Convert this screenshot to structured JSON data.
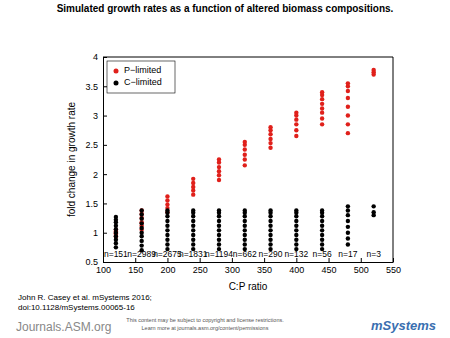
{
  "chart_data": {
    "type": "scatter",
    "title": "Simulated growth rates as a function of altered biomass compositions.",
    "x_label": "C:P ratio",
    "y_label": "fold change in growth rate",
    "xlim": [
      100,
      550
    ],
    "xticks": [
      100,
      150,
      200,
      250,
      300,
      350,
      400,
      450,
      500,
      550
    ],
    "ylim": [
      0.5,
      4
    ],
    "yticks": [
      0.5,
      1,
      1.5,
      2,
      2.5,
      3,
      3.5,
      4
    ],
    "legend": "upper-left",
    "marker": "circle",
    "series": [
      {
        "name": "P−limited",
        "color": "#e0201b",
        "x": [
          120,
          120,
          120,
          120,
          120,
          160,
          160,
          160,
          160,
          160,
          160,
          200,
          200,
          200,
          200,
          200,
          240,
          240,
          240,
          240,
          240,
          280,
          280,
          280,
          280,
          280,
          280,
          320,
          320,
          320,
          320,
          320,
          320,
          360,
          360,
          360,
          360,
          360,
          360,
          400,
          400,
          400,
          400,
          400,
          400,
          440,
          440,
          440,
          440,
          440,
          440,
          440,
          440,
          480,
          480,
          480,
          480,
          480,
          480,
          480,
          480,
          520,
          520,
          520
        ],
        "values": [
          0.93,
          0.96,
          0.99,
          1.02,
          1.05,
          1.05,
          1.12,
          1.18,
          1.25,
          1.32,
          1.38,
          1.35,
          1.42,
          1.48,
          1.55,
          1.62,
          1.65,
          1.72,
          1.78,
          1.85,
          1.92,
          1.9,
          1.98,
          2.05,
          2.12,
          2.2,
          2.25,
          2.15,
          2.25,
          2.33,
          2.42,
          2.5,
          2.55,
          2.45,
          2.53,
          2.6,
          2.68,
          2.75,
          2.8,
          2.65,
          2.75,
          2.85,
          2.93,
          3.0,
          3.05,
          2.85,
          2.95,
          3.05,
          3.12,
          3.2,
          3.28,
          3.35,
          3.4,
          2.7,
          2.85,
          3.0,
          3.15,
          3.3,
          3.42,
          3.5,
          3.55,
          3.7,
          3.74,
          3.78
        ]
      },
      {
        "name": "C−limited",
        "color": "#000000",
        "x": [
          120,
          120,
          120,
          120,
          120,
          120,
          120,
          120,
          120,
          120,
          160,
          160,
          160,
          160,
          160,
          160,
          160,
          160,
          160,
          160,
          200,
          200,
          200,
          200,
          200,
          200,
          200,
          200,
          200,
          200,
          240,
          240,
          240,
          240,
          240,
          240,
          240,
          240,
          240,
          240,
          280,
          280,
          280,
          280,
          280,
          280,
          280,
          280,
          280,
          280,
          320,
          320,
          320,
          320,
          320,
          320,
          320,
          320,
          320,
          320,
          360,
          360,
          360,
          360,
          360,
          360,
          360,
          360,
          360,
          360,
          400,
          400,
          400,
          400,
          400,
          400,
          400,
          400,
          400,
          400,
          440,
          440,
          440,
          440,
          440,
          440,
          440,
          440,
          440,
          440,
          480,
          480,
          480,
          480,
          480,
          480,
          480,
          480,
          520,
          520,
          520
        ],
        "values": [
          0.75,
          0.82,
          0.88,
          0.94,
          1.0,
          1.06,
          1.12,
          1.18,
          1.22,
          1.27,
          0.7,
          0.78,
          0.86,
          0.94,
          1.0,
          1.08,
          1.16,
          1.24,
          1.31,
          1.38,
          0.72,
          0.8,
          0.88,
          0.96,
          1.04,
          1.12,
          1.2,
          1.28,
          1.34,
          1.38,
          0.72,
          0.8,
          0.88,
          0.96,
          1.04,
          1.12,
          1.2,
          1.28,
          1.34,
          1.38,
          0.72,
          0.8,
          0.88,
          0.96,
          1.04,
          1.12,
          1.2,
          1.28,
          1.34,
          1.38,
          0.72,
          0.8,
          0.88,
          0.96,
          1.04,
          1.12,
          1.2,
          1.28,
          1.34,
          1.38,
          0.72,
          0.8,
          0.88,
          0.96,
          1.04,
          1.12,
          1.2,
          1.28,
          1.34,
          1.38,
          0.72,
          0.8,
          0.88,
          0.96,
          1.04,
          1.12,
          1.2,
          1.28,
          1.34,
          1.38,
          0.72,
          0.8,
          0.88,
          0.96,
          1.04,
          1.12,
          1.2,
          1.28,
          1.34,
          1.38,
          0.8,
          0.9,
          1.0,
          1.1,
          1.2,
          1.3,
          1.38,
          1.45,
          1.3,
          1.35,
          1.45
        ]
      }
    ],
    "annotations": [
      {
        "x": 120,
        "y": 0.62,
        "text": "n=151"
      },
      {
        "x": 160,
        "y": 0.62,
        "text": "n=2989"
      },
      {
        "x": 200,
        "y": 0.62,
        "text": "n=2675"
      },
      {
        "x": 240,
        "y": 0.62,
        "text": "n=1831"
      },
      {
        "x": 280,
        "y": 0.62,
        "text": "n=1194"
      },
      {
        "x": 320,
        "y": 0.62,
        "text": "n=662"
      },
      {
        "x": 360,
        "y": 0.62,
        "text": "n=290"
      },
      {
        "x": 400,
        "y": 0.62,
        "text": "n=132"
      },
      {
        "x": 440,
        "y": 0.62,
        "text": "n=56"
      },
      {
        "x": 480,
        "y": 0.62,
        "text": "n=17"
      },
      {
        "x": 520,
        "y": 0.62,
        "text": "n=3"
      }
    ],
    "citation": [
      "John R. Casey et al. mSystems 2016;",
      "doi:10.1128/mSystems.00065-16"
    ],
    "footer": [
      "Journals.ASM.org",
      "This content may be subject to copyright and license restrictions.",
      "Learn more at journals.asm.org/content/permissions",
      "mSystems"
    ]
  }
}
